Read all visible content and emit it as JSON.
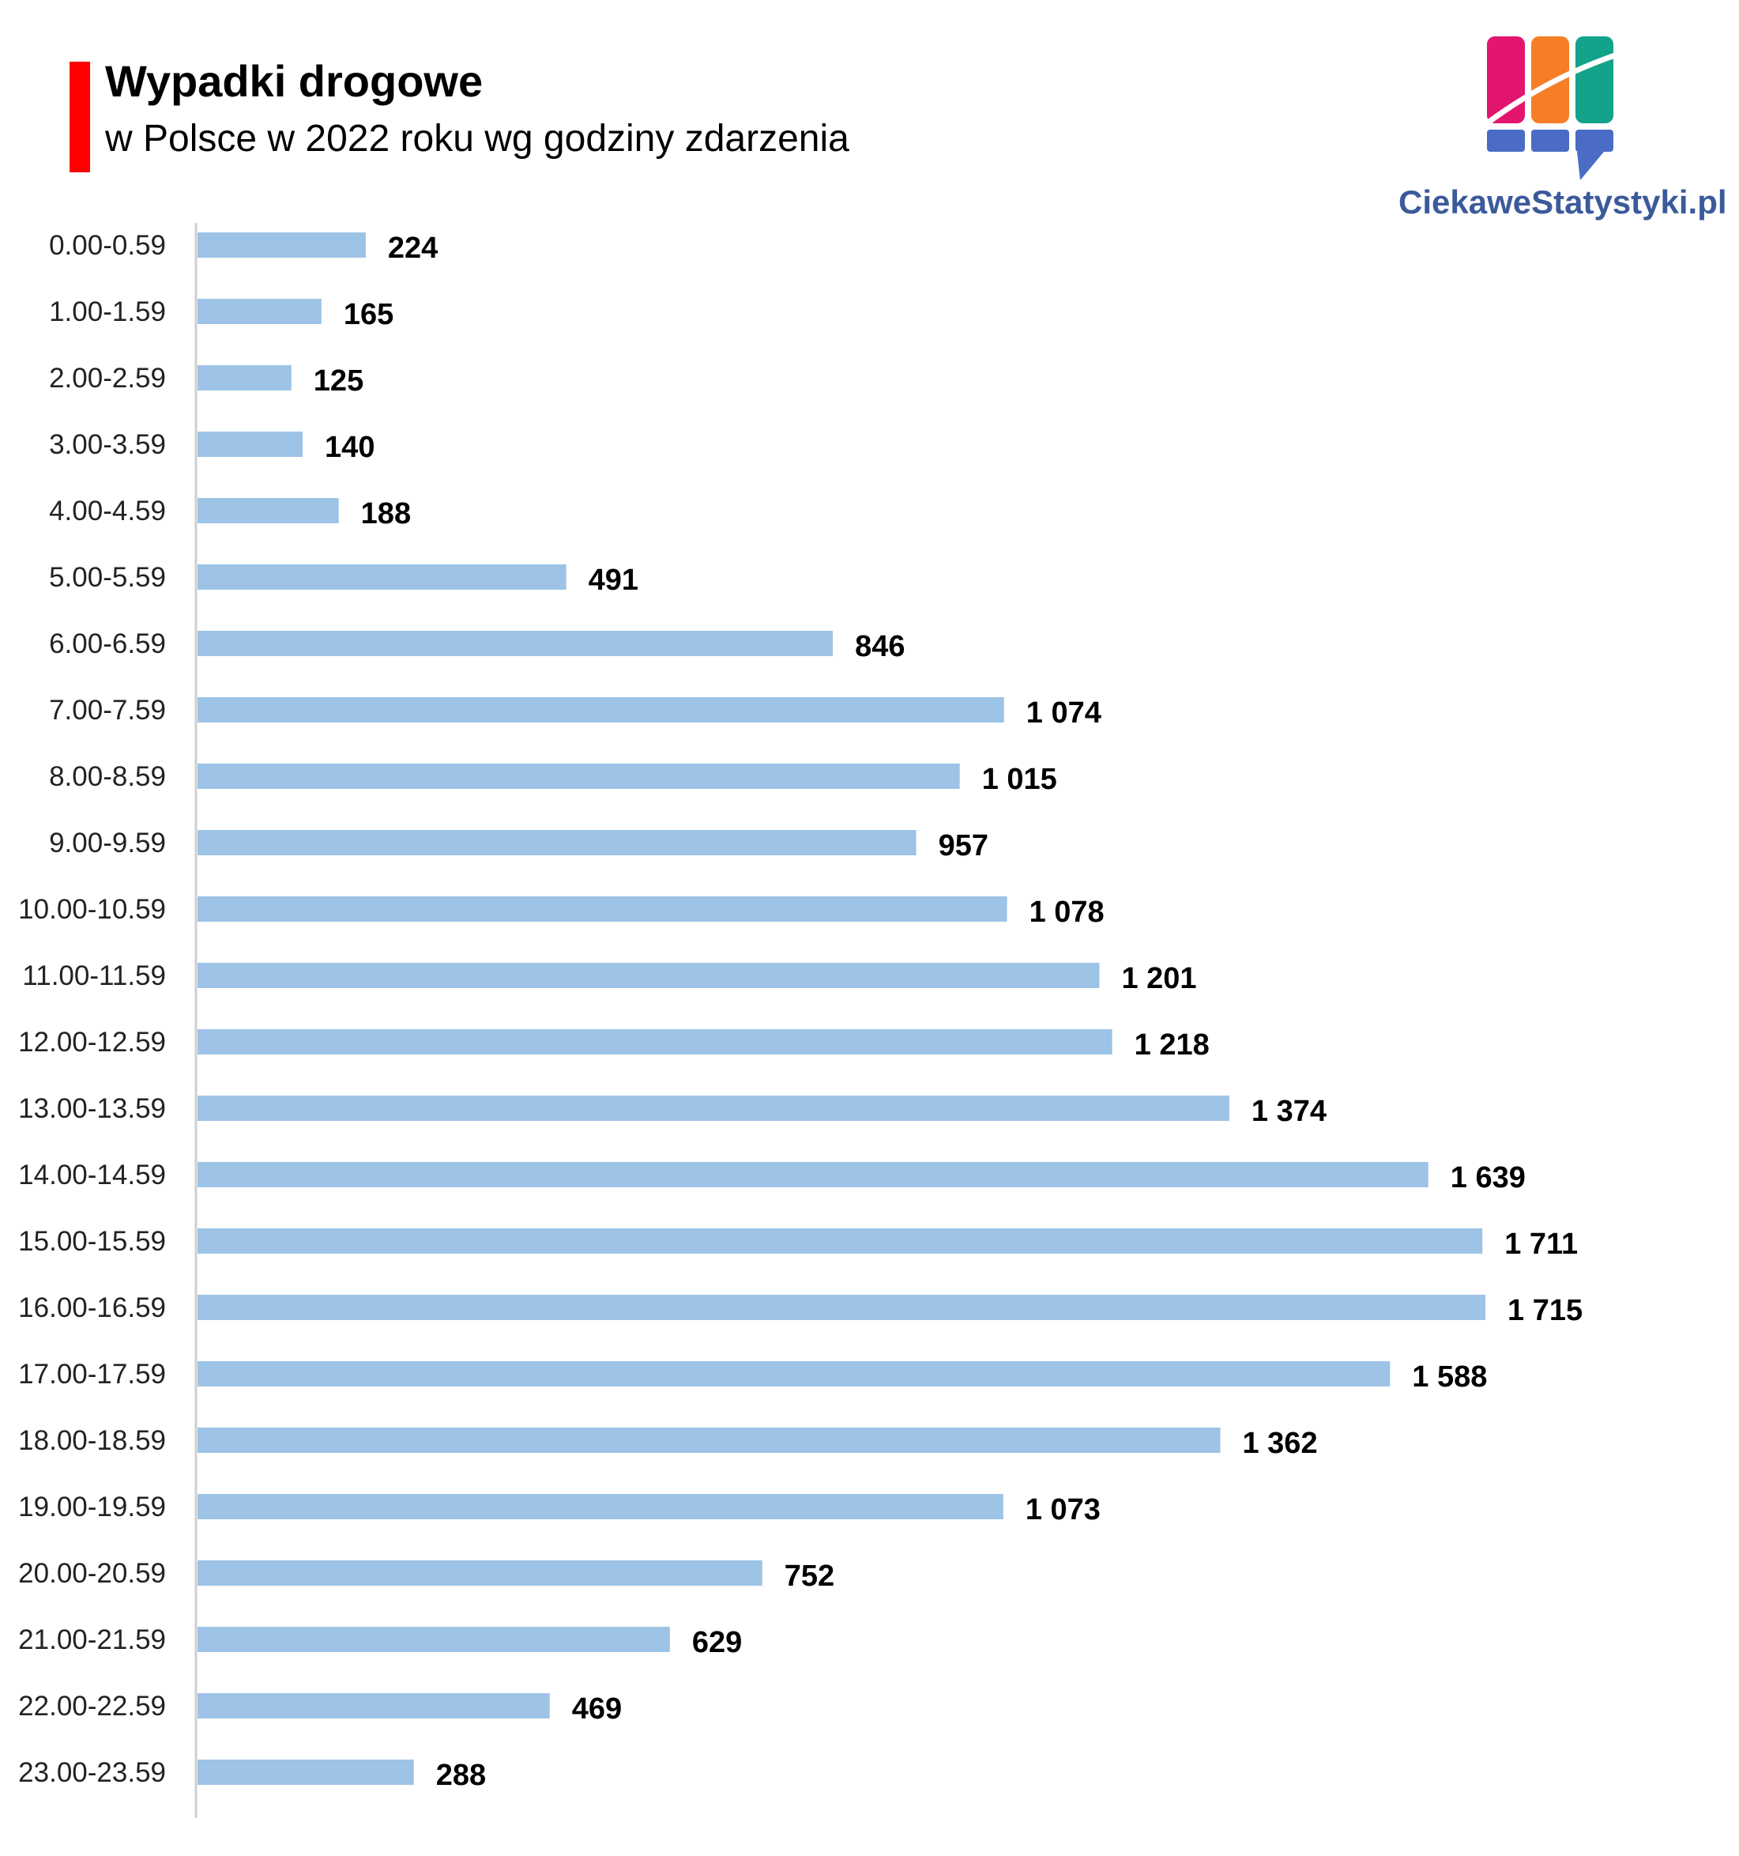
{
  "header": {
    "title": "Wypadki drogowe",
    "subtitle": "w Polsce w 2022 roku wg godziny zdarzenia",
    "accent_color": "#ff0000"
  },
  "logo": {
    "text": "CiekaweStatystyki.pl",
    "colors": [
      "#e2166e",
      "#f57e26",
      "#12a38a",
      "#4a6cc4"
    ]
  },
  "chart_data": {
    "type": "bar",
    "orientation": "horizontal",
    "bar_color": "#9dc3e6",
    "categories": [
      "0.00-0.59",
      "1.00-1.59",
      "2.00-2.59",
      "3.00-3.59",
      "4.00-4.59",
      "5.00-5.59",
      "6.00-6.59",
      "7.00-7.59",
      "8.00-8.59",
      "9.00-9.59",
      "10.00-10.59",
      "11.00-11.59",
      "12.00-12.59",
      "13.00-13.59",
      "14.00-14.59",
      "15.00-15.59",
      "16.00-16.59",
      "17.00-17.59",
      "18.00-18.59",
      "19.00-19.59",
      "20.00-20.59",
      "21.00-21.59",
      "22.00-22.59",
      "23.00-23.59"
    ],
    "values": [
      224,
      165,
      125,
      140,
      188,
      491,
      846,
      1074,
      1015,
      957,
      1078,
      1201,
      1218,
      1374,
      1639,
      1711,
      1715,
      1588,
      1362,
      1073,
      752,
      629,
      469,
      288
    ],
    "value_labels": [
      "224",
      "165",
      "125",
      "140",
      "188",
      "491",
      "846",
      "1 074",
      "1 015",
      "957",
      "1 078",
      "1 201",
      "1 218",
      "1 374",
      "1 639",
      "1 711",
      "1 715",
      "1 588",
      "1 362",
      "1 073",
      "752",
      "629",
      "469",
      "288"
    ],
    "xlim": [
      0,
      1715
    ],
    "grid": false,
    "legend": "none"
  }
}
